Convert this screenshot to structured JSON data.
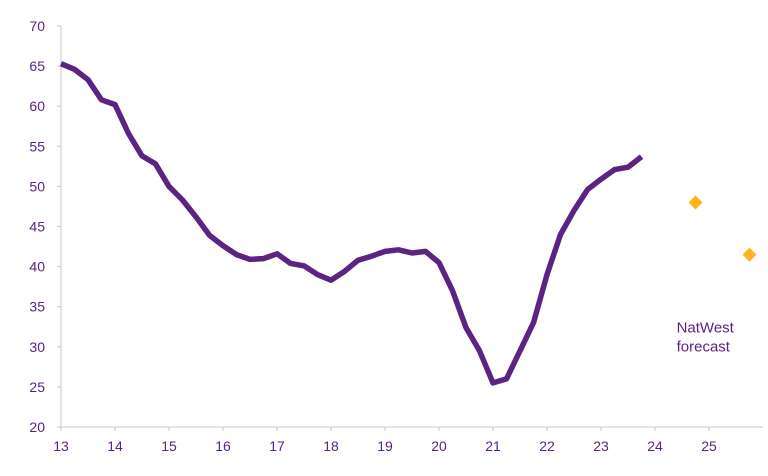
{
  "chart_data": {
    "type": "line",
    "title": "",
    "xlabel": "",
    "ylabel": "",
    "xlim": [
      13,
      26
    ],
    "ylim": [
      20,
      70
    ],
    "x_ticks": [
      "13",
      "14",
      "15",
      "16",
      "17",
      "18",
      "19",
      "20",
      "21",
      "22",
      "23",
      "24",
      "25"
    ],
    "y_ticks": [
      "20",
      "25",
      "30",
      "35",
      "40",
      "45",
      "50",
      "55",
      "60",
      "65",
      "70"
    ],
    "grid": false,
    "series": [
      {
        "color": "#5b2483",
        "style": "line",
        "points": [
          [
            13.0,
            65.3
          ],
          [
            13.25,
            64.6
          ],
          [
            13.5,
            63.3
          ],
          [
            13.75,
            60.8
          ],
          [
            14.0,
            60.2
          ],
          [
            14.25,
            56.6
          ],
          [
            14.5,
            53.8
          ],
          [
            14.75,
            52.8
          ],
          [
            15.0,
            50.0
          ],
          [
            15.25,
            48.3
          ],
          [
            15.5,
            46.2
          ],
          [
            15.75,
            43.9
          ],
          [
            16.0,
            42.6
          ],
          [
            16.25,
            41.5
          ],
          [
            16.5,
            40.9
          ],
          [
            16.75,
            41.0
          ],
          [
            17.0,
            41.6
          ],
          [
            17.25,
            40.4
          ],
          [
            17.5,
            40.1
          ],
          [
            17.75,
            39.0
          ],
          [
            18.0,
            38.3
          ],
          [
            18.25,
            39.4
          ],
          [
            18.5,
            40.8
          ],
          [
            18.75,
            41.3
          ],
          [
            19.0,
            41.9
          ],
          [
            19.25,
            42.1
          ],
          [
            19.5,
            41.7
          ],
          [
            19.75,
            41.9
          ],
          [
            20.0,
            40.5
          ],
          [
            20.25,
            37.0
          ],
          [
            20.5,
            32.4
          ],
          [
            20.75,
            29.5
          ],
          [
            21.0,
            25.5
          ],
          [
            21.25,
            26.0
          ],
          [
            21.5,
            29.5
          ],
          [
            21.75,
            33.0
          ],
          [
            22.0,
            39.0
          ],
          [
            22.25,
            44.0
          ],
          [
            22.5,
            47.0
          ],
          [
            22.75,
            49.6
          ],
          [
            23.0,
            50.9
          ],
          [
            23.25,
            52.1
          ],
          [
            23.5,
            52.4
          ],
          [
            23.75,
            53.7
          ]
        ]
      },
      {
        "name": "NatWest forecast",
        "color": "#ffb31a",
        "style": "diamond-markers",
        "points": [
          [
            24.75,
            48.0
          ],
          [
            25.75,
            41.5
          ]
        ]
      }
    ],
    "annotations": [
      {
        "lines": [
          "NatWest",
          "forecast"
        ],
        "color": "#5b2483",
        "x": 24.4,
        "y": 31.8
      }
    ],
    "axis_color": "#5b2483"
  }
}
